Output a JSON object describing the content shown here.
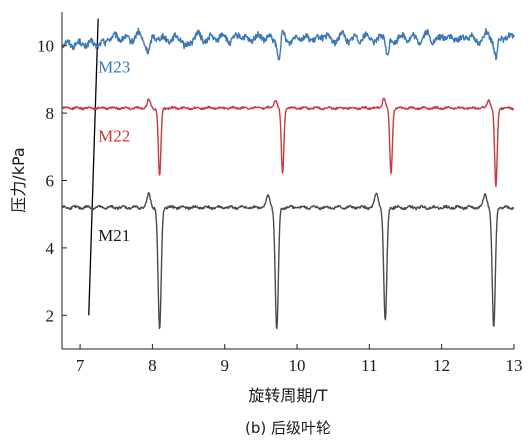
{
  "caption": "(b) 后级叶轮",
  "chart_data": {
    "type": "line",
    "title": "",
    "xlabel": "旋转周期/T",
    "ylabel": "压力/kPa",
    "xlim": [
      6.75,
      13
    ],
    "ylim": [
      1.0,
      11.0
    ],
    "xticks": [
      7,
      8,
      9,
      10,
      11,
      12,
      13
    ],
    "yticks": [
      2,
      4,
      6,
      8,
      10
    ],
    "grid": false,
    "legend": "none",
    "series": [
      {
        "name": "M23",
        "color": "#3a78b8",
        "baseline": 10.3,
        "noise": 0.13,
        "pulses": [
          {
            "x": 7.95,
            "depth": 0.35,
            "width": 0.04
          },
          {
            "x": 8.45,
            "depth": 0.25,
            "width": 0.05
          },
          {
            "x": 9.75,
            "depth": 0.65,
            "width": 0.03
          },
          {
            "x": 11.25,
            "depth": 0.6,
            "width": 0.03
          },
          {
            "x": 12.75,
            "depth": 0.55,
            "width": 0.03
          }
        ],
        "x_start_settle": 7.35,
        "start_value": 10.05,
        "points": [
          [
            6.75,
            10.05
          ],
          [
            7.0,
            10.02
          ],
          [
            7.2,
            10.08
          ],
          [
            7.35,
            10.1
          ],
          [
            7.5,
            10.35
          ],
          [
            7.95,
            9.95
          ],
          [
            8.1,
            10.4
          ],
          [
            9.75,
            9.75
          ],
          [
            11.25,
            9.75
          ],
          [
            12.75,
            9.8
          ],
          [
            13.0,
            10.3
          ]
        ]
      },
      {
        "name": "M22",
        "color": "#c8393d",
        "baseline": 8.15,
        "noise": 0.04,
        "pulses": [
          {
            "x": 7.95,
            "depth": -0.25,
            "width": 0.03
          },
          {
            "x": 8.1,
            "depth": 2.05,
            "width": 0.025
          },
          {
            "x": 9.7,
            "depth": -0.25,
            "width": 0.03
          },
          {
            "x": 9.8,
            "depth": 1.95,
            "width": 0.025
          },
          {
            "x": 11.2,
            "depth": -0.3,
            "width": 0.03
          },
          {
            "x": 11.3,
            "depth": 1.95,
            "width": 0.025
          },
          {
            "x": 12.65,
            "depth": -0.25,
            "width": 0.03
          },
          {
            "x": 12.75,
            "depth": 2.35,
            "width": 0.025
          }
        ],
        "x_start_settle": 6.75,
        "start_value": 8.15,
        "points": [
          [
            6.75,
            8.15
          ],
          [
            7.95,
            8.4
          ],
          [
            8.1,
            6.1
          ],
          [
            9.75,
            6.2
          ],
          [
            11.25,
            6.2
          ],
          [
            12.75,
            5.8
          ],
          [
            13.0,
            8.15
          ]
        ]
      },
      {
        "name": "M21",
        "color": "#4a4a4a",
        "baseline": 5.2,
        "noise": 0.05,
        "pulses": [
          {
            "x": 7.95,
            "depth": -0.4,
            "width": 0.035
          },
          {
            "x": 8.1,
            "depth": 3.65,
            "width": 0.03
          },
          {
            "x": 9.6,
            "depth": -0.35,
            "width": 0.035
          },
          {
            "x": 9.72,
            "depth": 3.65,
            "width": 0.03
          },
          {
            "x": 11.1,
            "depth": -0.4,
            "width": 0.035
          },
          {
            "x": 11.22,
            "depth": 3.4,
            "width": 0.03
          },
          {
            "x": 12.6,
            "depth": -0.4,
            "width": 0.035
          },
          {
            "x": 12.72,
            "depth": 3.6,
            "width": 0.03
          }
        ],
        "x_start_settle": 6.75,
        "start_value": 5.15,
        "points": [
          [
            6.75,
            5.15
          ],
          [
            7.95,
            5.6
          ],
          [
            8.1,
            1.55
          ],
          [
            9.72,
            1.55
          ],
          [
            11.22,
            1.8
          ],
          [
            12.72,
            1.6
          ],
          [
            13.0,
            5.3
          ]
        ]
      }
    ],
    "annotations": [
      {
        "type": "line",
        "from": [
          7.12,
          2.0
        ],
        "to": [
          7.25,
          10.8
        ],
        "color": "#000000"
      }
    ],
    "series_labels": [
      {
        "text": "M23",
        "x": 7.25,
        "y": 9.2,
        "color": "#3a78b8"
      },
      {
        "text": "M22",
        "x": 7.25,
        "y": 7.15,
        "color": "#c8393d"
      },
      {
        "text": "M21",
        "x": 7.25,
        "y": 4.2,
        "color": "#1a1a1a"
      }
    ]
  }
}
